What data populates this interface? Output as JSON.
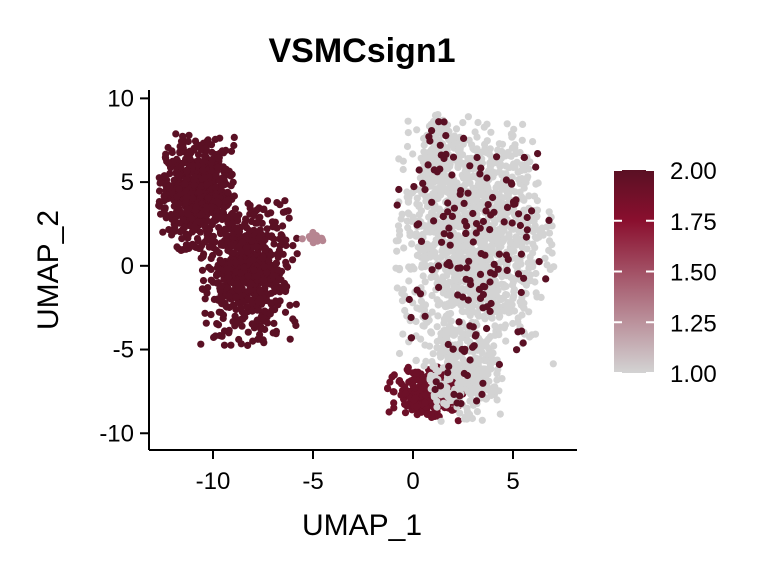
{
  "chart_data": {
    "type": "scatter",
    "title": "VSMCsign1",
    "xlabel": "UMAP_1",
    "ylabel": "UMAP_2",
    "xlim": [
      -13.2,
      8.2
    ],
    "ylim": [
      -11,
      10.5
    ],
    "x_ticks": [
      -10,
      -5,
      0,
      5
    ],
    "y_ticks": [
      10,
      5,
      0,
      -5,
      -10
    ],
    "x_tick_labels": [
      "-10",
      "-5",
      "0",
      "5"
    ],
    "y_tick_labels": [
      "10",
      "5",
      "0",
      "-5",
      "-10"
    ],
    "grid": false,
    "legend_position": "right",
    "colorbar": {
      "min": 1.0,
      "max": 2.0,
      "ticks": [
        2.0,
        1.75,
        1.5,
        1.25,
        1.0
      ],
      "tick_labels": [
        "2.00",
        "1.75",
        "1.50",
        "1.25",
        "1.00"
      ],
      "colors": [
        "#d3d3d3",
        "#8a0f2e",
        "#5a1024"
      ]
    },
    "clusters": [
      {
        "center": [
          -10.8,
          4.4
        ],
        "spread": [
          0.9,
          1.6
        ],
        "count": 650,
        "score": 2.0
      },
      {
        "center": [
          -8.2,
          -0.4
        ],
        "spread": [
          1.1,
          2.0
        ],
        "count": 650,
        "score": 2.0
      },
      {
        "center": [
          -5.0,
          1.7
        ],
        "spread": [
          0.25,
          0.15
        ],
        "count": 12,
        "score": 1.3
      },
      {
        "center": [
          0.6,
          -7.6
        ],
        "spread": [
          0.9,
          0.75
        ],
        "count": 260,
        "score": 1.9
      },
      {
        "center": [
          3.1,
          1.5
        ],
        "spread": [
          1.8,
          3.4
        ],
        "count": 1500,
        "score": 1.0
      },
      {
        "center": [
          1.2,
          6.5
        ],
        "spread": [
          0.4,
          1.2
        ],
        "count": 150,
        "score": 1.0
      },
      {
        "center": [
          2.5,
          -6.5
        ],
        "spread": [
          0.9,
          1.3
        ],
        "count": 300,
        "score": 1.0
      }
    ],
    "highlighted_points_in_gray_cluster": 170
  }
}
